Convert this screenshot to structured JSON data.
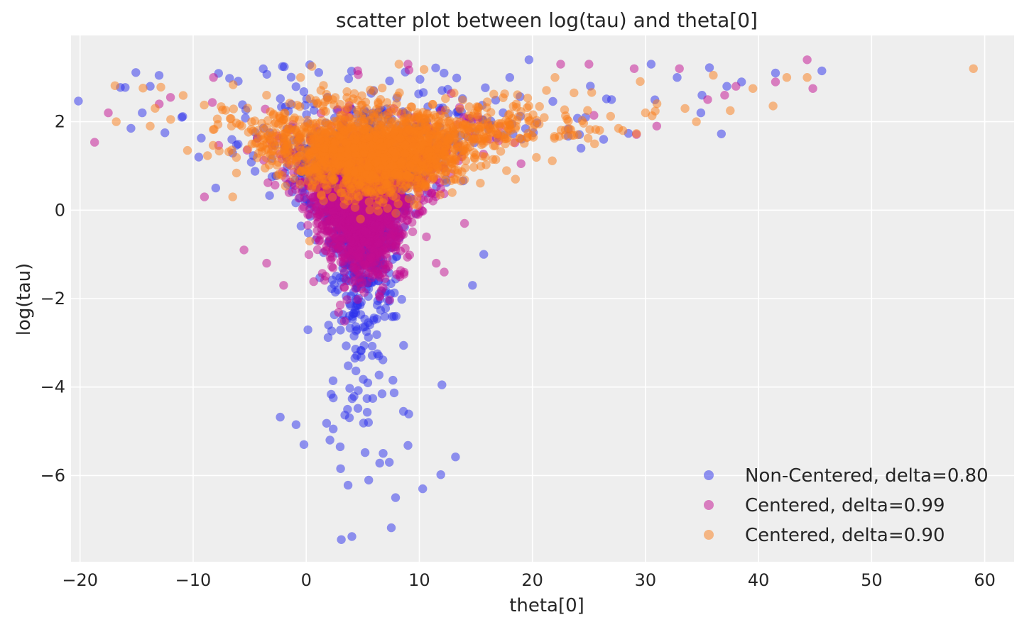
{
  "chart_data": {
    "type": "scatter",
    "title": "scatter plot between log(tau) and theta[0]",
    "xlabel": "theta[0]",
    "ylabel": "log(tau)",
    "xlim": [
      -20.8,
      62.6
    ],
    "ylim": [
      -7.95,
      3.95
    ],
    "xticks": [
      -20,
      -10,
      0,
      10,
      20,
      30,
      40,
      50,
      60
    ],
    "yticks": [
      -6,
      -4,
      -2,
      0,
      2
    ],
    "grid": true,
    "legend_position": "bottom-right",
    "colors": {
      "plot_background": "#eeeeee",
      "grid": "#ffffff",
      "text": "#262626"
    },
    "series": [
      {
        "name": "Non-Centered, delta=0.80",
        "color": "#2a2eec",
        "alpha": 0.5,
        "samples": 1400,
        "body_model": {
          "center_x": 5.0,
          "center_y": 0.6,
          "spread_x": 3.2,
          "spread_y": 1.0
        },
        "points": [
          [
            3.1,
            -7.45
          ],
          [
            7.9,
            -6.5
          ],
          [
            10.3,
            -6.3
          ],
          [
            3.7,
            -6.22
          ],
          [
            11.9,
            -5.98
          ],
          [
            6.5,
            -5.72
          ],
          [
            6.8,
            -5.5
          ],
          [
            13.2,
            -5.58
          ],
          [
            9.0,
            -5.32
          ],
          [
            -0.2,
            -5.3
          ],
          [
            3.0,
            -5.35
          ],
          [
            2.1,
            -5.2
          ],
          [
            1.8,
            -4.82
          ],
          [
            -2.3,
            -4.68
          ],
          [
            -0.9,
            -4.85
          ],
          [
            5.5,
            -4.8
          ],
          [
            8.6,
            -4.55
          ],
          [
            -14.5,
            2.2
          ],
          [
            -15.5,
            1.85
          ],
          [
            -13.8,
            2.8
          ],
          [
            -12.5,
            1.75
          ],
          [
            -9.5,
            1.2
          ],
          [
            12.0,
            -3.95
          ],
          [
            14.7,
            -1.7
          ],
          [
            15.7,
            -1.0
          ],
          [
            19.7,
            3.4
          ],
          [
            24.3,
            1.4
          ],
          [
            26.3,
            1.6
          ],
          [
            30.5,
            3.3
          ],
          [
            32.8,
            3.0
          ],
          [
            34.9,
            2.2
          ],
          [
            37.2,
            2.8
          ],
          [
            41.5,
            3.1
          ],
          [
            45.6,
            3.15
          ],
          [
            -8.0,
            0.5
          ],
          [
            -11.0,
            2.1
          ],
          [
            18.0,
            3.0
          ],
          [
            27.0,
            2.5
          ],
          [
            35.0,
            2.6
          ],
          [
            38.5,
            2.9
          ]
        ]
      },
      {
        "name": "Centered, delta=0.99",
        "color": "#c10c90",
        "alpha": 0.5,
        "samples": 1500,
        "body_model": {
          "center_x": 5.0,
          "center_y": 0.3,
          "spread_x": 3.3,
          "spread_y": 0.8
        },
        "points": [
          [
            -17.5,
            2.2
          ],
          [
            -13.0,
            2.4
          ],
          [
            -12.0,
            2.55
          ],
          [
            -9.0,
            0.3
          ],
          [
            -8.2,
            3.0
          ],
          [
            -5.5,
            -0.9
          ],
          [
            11.5,
            -1.2
          ],
          [
            12.2,
            -1.4
          ],
          [
            14.0,
            -0.3
          ],
          [
            19.0,
            1.05
          ],
          [
            22.5,
            3.3
          ],
          [
            25.0,
            3.3
          ],
          [
            29.0,
            3.2
          ],
          [
            31.0,
            1.9
          ],
          [
            33.0,
            3.2
          ],
          [
            35.5,
            2.5
          ],
          [
            37.0,
            2.6
          ],
          [
            38.0,
            2.8
          ],
          [
            41.5,
            2.9
          ],
          [
            44.3,
            3.4
          ],
          [
            44.8,
            2.75
          ],
          [
            -3.5,
            -1.2
          ],
          [
            -2.0,
            -1.7
          ],
          [
            9.0,
            3.3
          ]
        ]
      },
      {
        "name": "Centered, delta=0.90",
        "color": "#fa7c17",
        "alpha": 0.5,
        "samples": 1800,
        "body_model": {
          "center_x": 6.0,
          "center_y": 1.4,
          "spread_x": 3.5,
          "spread_y": 0.5
        },
        "points": [
          [
            -16.8,
            2.0
          ],
          [
            -13.8,
            1.9
          ],
          [
            -10.5,
            1.35
          ],
          [
            -6.5,
            0.3
          ],
          [
            0.5,
            3.25
          ],
          [
            8.2,
            3.3
          ],
          [
            18.5,
            0.7
          ],
          [
            28.0,
            1.8
          ],
          [
            30.0,
            2.2
          ],
          [
            33.5,
            2.3
          ],
          [
            36.0,
            3.05
          ],
          [
            37.5,
            2.25
          ],
          [
            39.5,
            2.75
          ],
          [
            42.5,
            3.0
          ],
          [
            44.3,
            3.0
          ],
          [
            59.0,
            3.2
          ],
          [
            -0.5,
            3.0
          ],
          [
            4.8,
            -0.2
          ],
          [
            0.3,
            -0.7
          ],
          [
            25.5,
            1.5
          ],
          [
            34.5,
            2.0
          ],
          [
            22.0,
            3.0
          ]
        ]
      }
    ]
  }
}
